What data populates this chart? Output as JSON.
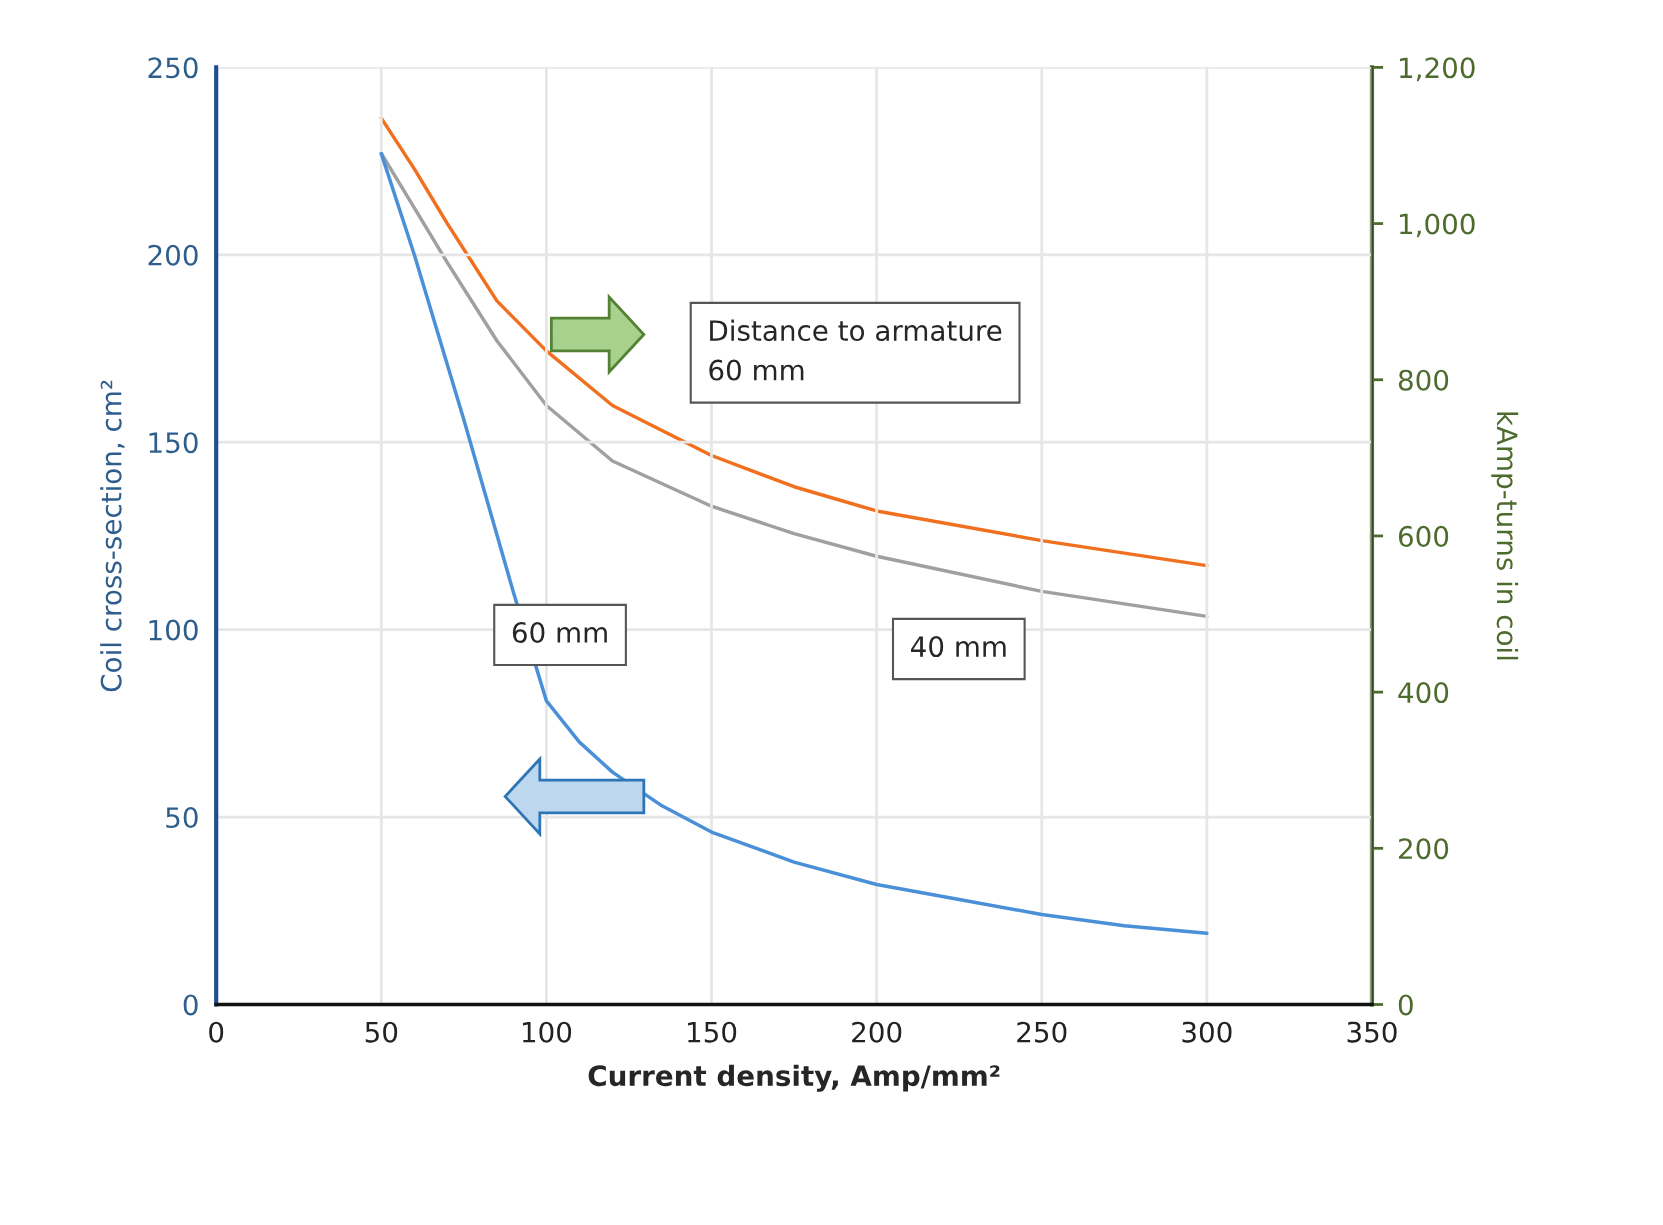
{
  "chart_data": {
    "type": "line",
    "xlabel": "Current density, Amp/mm²",
    "ylabel": "Coil cross-section, cm²",
    "y2label": "kAmp-turns in coil",
    "xlim": [
      0,
      350
    ],
    "xticks": [
      0,
      50,
      100,
      150,
      200,
      250,
      300,
      350
    ],
    "ylim": [
      0,
      250
    ],
    "yticks": [
      0,
      50,
      100,
      150,
      200,
      250
    ],
    "y2lim": [
      0,
      1200
    ],
    "y2ticks": [
      0,
      200,
      400,
      600,
      800,
      {
        "value": 1000,
        "label": "1,000"
      },
      {
        "value": 1200,
        "label": "1,200"
      }
    ],
    "grid": true,
    "marker": "none",
    "line_style": "solid",
    "series": [
      {
        "color": "#4a90d9",
        "x": [
          50,
          60,
          75,
          90,
          100,
          110,
          120,
          135,
          150,
          175,
          200,
          225,
          250,
          275,
          300
        ],
        "values": [
          227,
          200,
          156,
          110,
          81,
          70,
          62,
          53,
          46,
          38,
          32,
          28,
          24,
          21,
          19
        ]
      },
      {
        "color": "#f07020",
        "axis": "y2",
        "x": [
          50,
          60,
          70,
          85,
          100,
          120,
          150,
          175,
          200,
          250,
          300
        ],
        "values": [
          1135,
          1070,
          1000,
          901,
          837,
          767,
          703,
          663,
          632,
          594,
          562
        ]
      },
      {
        "color": "#a0a0a0",
        "axis": "y2",
        "x": [
          50,
          60,
          70,
          85,
          100,
          120,
          150,
          175,
          200,
          250,
          300
        ],
        "values": [
          1090,
          1020,
          950,
          850,
          767,
          696,
          638,
          603,
          574,
          529,
          497
        ]
      }
    ],
    "annotations": [
      "Distance to armature\n60 mm",
      "40 mm",
      "60 mm"
    ]
  }
}
